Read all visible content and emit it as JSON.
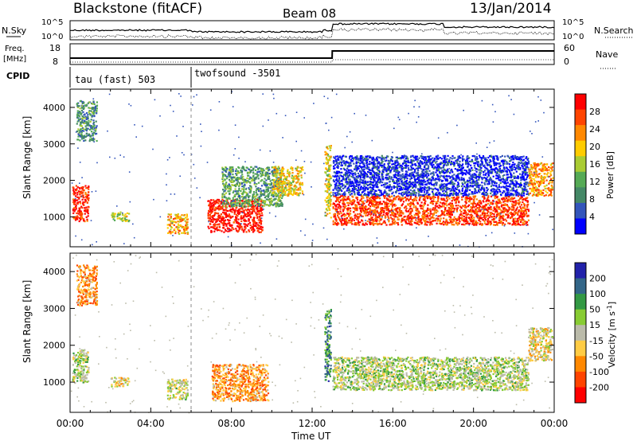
{
  "header": {
    "station": "Blackstone (fitACF)",
    "beam": "Beam 08",
    "date": "13/Jan/2014"
  },
  "noise_panel": {
    "left_label": "N.Sky",
    "right_label": "N.Search",
    "ticks": [
      "10^5",
      "10^0"
    ]
  },
  "freq_panel": {
    "left_label_top": "Freq.",
    "left_label_unit": "[MHz]",
    "left_ticks": [
      "18",
      "8"
    ],
    "right_label": "Nave",
    "right_ticks": [
      "60",
      "0"
    ],
    "cpid_label": "CPID"
  },
  "cpid": {
    "segments": [
      {
        "label": "tau (fast) 503",
        "start_hour": 0
      },
      {
        "label": "twofsound -3501",
        "start_hour": 6
      }
    ]
  },
  "colors": {
    "power_scale": [
      "#0000ff",
      "#3355bb",
      "#448866",
      "#55aa55",
      "#aacc33",
      "#ffcc00",
      "#ff8800",
      "#ff4400",
      "#ff0000"
    ],
    "velocity_scale": [
      "#2222aa",
      "#336688",
      "#339944",
      "#88cc33",
      "#bbbbaa",
      "#ffcc44",
      "#ff8800",
      "#ff4400",
      "#ff0000"
    ]
  },
  "chart_data": [
    {
      "type": "heatmap",
      "panel": "power",
      "ylabel": "Slant Range [km]",
      "xlabel": "",
      "ylim": [
        180,
        4500
      ],
      "xlim_hours": [
        0,
        24
      ],
      "yticks": [
        "1000",
        "2000",
        "3000",
        "4000"
      ],
      "colorbar": {
        "label": "Power [dB]",
        "ticks": [
          "4",
          "8",
          "12",
          "16",
          "20",
          "24",
          "28"
        ]
      },
      "regions": [
        {
          "x": [
            0.1,
            0.9
          ],
          "y": [
            900,
            1900
          ],
          "level": 0.9
        },
        {
          "x": [
            0.3,
            1.3
          ],
          "y": [
            3100,
            4200
          ],
          "level": 0.3
        },
        {
          "x": [
            2.0,
            2.9
          ],
          "y": [
            900,
            1150
          ],
          "level": 0.5
        },
        {
          "x": [
            4.8,
            5.8
          ],
          "y": [
            550,
            1100
          ],
          "level": 0.65
        },
        {
          "x": [
            6.8,
            9.5
          ],
          "y": [
            600,
            1500
          ],
          "level": 0.95
        },
        {
          "x": [
            7.5,
            10.5
          ],
          "y": [
            1300,
            2400
          ],
          "level": 0.35
        },
        {
          "x": [
            10.0,
            11.5
          ],
          "y": [
            1600,
            2400
          ],
          "level": 0.6
        },
        {
          "x": [
            12.6,
            12.9
          ],
          "y": [
            1000,
            3000
          ],
          "level": 0.55
        },
        {
          "x": [
            13.0,
            22.7
          ],
          "y": [
            800,
            1600
          ],
          "level": 0.85
        },
        {
          "x": [
            13.0,
            22.7
          ],
          "y": [
            1600,
            2700
          ],
          "level": 0.1
        },
        {
          "x": [
            22.7,
            23.9
          ],
          "y": [
            1600,
            2500
          ],
          "level": 0.7
        }
      ]
    },
    {
      "type": "heatmap",
      "panel": "velocity",
      "ylabel": "Slant Range [km]",
      "xlabel": "Time UT",
      "ylim": [
        180,
        4500
      ],
      "xlim_hours": [
        0,
        24
      ],
      "xticks": [
        "00:00",
        "04:00",
        "08:00",
        "12:00",
        "16:00",
        "20:00",
        "00:00"
      ],
      "yticks": [
        "1000",
        "2000",
        "3000",
        "4000"
      ],
      "colorbar": {
        "label": "Velocity [m s^-1]",
        "ticks": [
          "200",
          "100",
          "50",
          "15",
          "-15",
          "-50",
          "-100",
          "-200"
        ]
      },
      "regions": [
        {
          "x": [
            0.1,
            0.9
          ],
          "y": [
            1000,
            1900
          ],
          "level": 0.45
        },
        {
          "x": [
            0.3,
            1.3
          ],
          "y": [
            3100,
            4200
          ],
          "level": 0.7
        },
        {
          "x": [
            2.0,
            2.9
          ],
          "y": [
            900,
            1150
          ],
          "level": 0.55
        },
        {
          "x": [
            4.8,
            5.8
          ],
          "y": [
            550,
            1100
          ],
          "level": 0.5
        },
        {
          "x": [
            7.0,
            9.8
          ],
          "y": [
            500,
            1500
          ],
          "level": 0.7
        },
        {
          "x": [
            12.6,
            12.9
          ],
          "y": [
            1000,
            3000
          ],
          "level": 0.25
        },
        {
          "x": [
            13.0,
            22.7
          ],
          "y": [
            800,
            1700
          ],
          "level": 0.45
        },
        {
          "x": [
            22.7,
            23.9
          ],
          "y": [
            1600,
            2500
          ],
          "level": 0.55
        }
      ]
    }
  ]
}
